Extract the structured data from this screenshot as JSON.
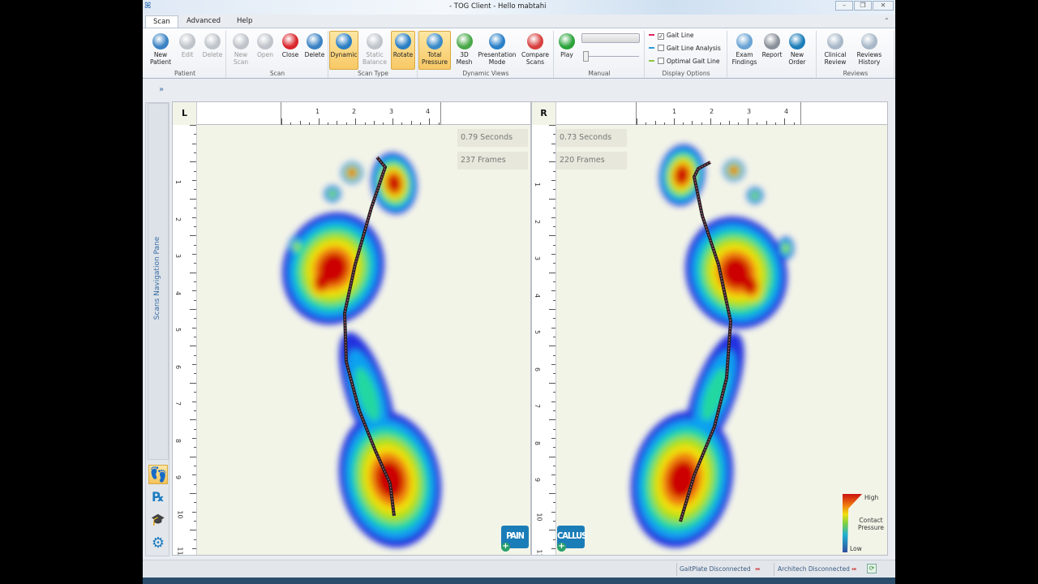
{
  "window": {
    "title": "- TOG Client - Hello mabtahi",
    "controls": [
      "minimize",
      "restore",
      "close"
    ]
  },
  "tabs": [
    {
      "label": "Scan",
      "active": true
    },
    {
      "label": "Advanced"
    },
    {
      "label": "Help"
    }
  ],
  "ribbon": {
    "groups": [
      {
        "label": "Patient",
        "buttons": [
          {
            "label": "New Patient",
            "icon": "new-patient-icon"
          },
          {
            "label": "Edit",
            "icon": "edit-patient-icon",
            "disabled": true
          },
          {
            "label": "Delete",
            "icon": "delete-patient-icon",
            "disabled": true
          }
        ]
      },
      {
        "label": "Scan",
        "buttons": [
          {
            "label": "New Scan",
            "icon": "new-scan-icon",
            "disabled": true
          },
          {
            "label": "Open",
            "icon": "open-icon",
            "disabled": true
          },
          {
            "label": "Close",
            "icon": "close-scan-icon"
          },
          {
            "label": "Delete",
            "icon": "delete-scan-icon"
          }
        ]
      },
      {
        "label": "Scan Type",
        "buttons": [
          {
            "label": "Dynamic",
            "icon": "dynamic-icon",
            "selected": true
          },
          {
            "label": "Static Balance",
            "icon": "static-balance-icon",
            "disabled": true
          },
          {
            "label": "Rotate",
            "icon": "rotate-icon",
            "selected": true
          }
        ]
      },
      {
        "label": "Dynamic Views",
        "buttons": [
          {
            "label": "Total Pressure",
            "icon": "total-pressure-icon",
            "selected": true
          },
          {
            "label": "3D Mesh",
            "icon": "3d-mesh-icon"
          },
          {
            "label": "Presentation Mode",
            "icon": "presentation-mode-icon"
          },
          {
            "label": "Compare Scans",
            "icon": "compare-scans-icon"
          }
        ]
      },
      {
        "label": "Manual",
        "buttons": [
          {
            "label": "Play",
            "icon": "play-icon"
          }
        ]
      },
      {
        "label": "Display Options",
        "checks": [
          {
            "label": "Gait Line",
            "checked": true,
            "color": "#e0245e"
          },
          {
            "label": "Gait Line Analysis",
            "checked": false,
            "color": "#2a9fd8"
          },
          {
            "label": "Optimal Gait Line",
            "checked": false,
            "color": "#8dc63f"
          }
        ]
      },
      {
        "label": "",
        "buttons": [
          {
            "label": "Exam Findings",
            "icon": "exam-findings-icon"
          },
          {
            "label": "Report",
            "icon": "printer-icon"
          },
          {
            "label": "New Order",
            "icon": "rx-icon"
          }
        ]
      },
      {
        "label": "Reviews",
        "buttons": [
          {
            "label": "Clinical Review",
            "icon": "clinical-review-icon"
          },
          {
            "label": "Reviews History",
            "icon": "reviews-history-icon"
          }
        ]
      }
    ]
  },
  "nav": {
    "expand": "»",
    "pane_label": "Scans Navigation Pane"
  },
  "left": {
    "side": "L",
    "seconds": "0.79 Seconds",
    "frames": "237 Frames",
    "tag": "PAIN"
  },
  "right": {
    "side": "R",
    "seconds": "0.73 Seconds",
    "frames": "220 Frames",
    "tag": "CALLUS"
  },
  "ruler": {
    "h": [
      "1",
      "2",
      "3",
      "4"
    ],
    "v": [
      "1",
      "2",
      "3",
      "4",
      "5",
      "6",
      "7",
      "8",
      "9",
      "10",
      "11"
    ]
  },
  "legend": {
    "high": "High",
    "title": "Contact Pressure",
    "low": "Low"
  },
  "status": {
    "gaitplate": "GaitPlate Disconnected",
    "architech": "Architech Disconnected"
  },
  "colors": {
    "accent": "#1b7db8",
    "selected": "#f8c865",
    "high": "#cc0000",
    "low": "#2050c0"
  }
}
